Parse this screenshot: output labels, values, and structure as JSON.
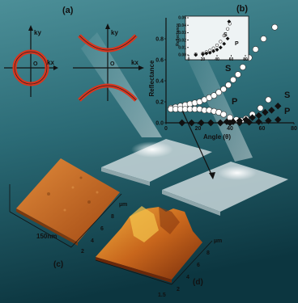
{
  "figure": {
    "panel_labels": {
      "a": "(a)",
      "b": "(b)",
      "c": "(c)",
      "d": "(d)"
    },
    "dispersion": {
      "axis_kx": "kx",
      "axis_ky": "ky",
      "origin_label": "O"
    },
    "afm": {
      "c": {
        "height_label": "150nm",
        "unit": "µm",
        "ticks_x": [
          "2",
          "4",
          "6",
          "8"
        ],
        "ticks_y": [
          "2",
          "4",
          "6",
          "8"
        ]
      },
      "d": {
        "unit": "µm",
        "ticks_x": [
          "1.5",
          "2",
          "4",
          "6",
          "8"
        ],
        "ticks_y": [
          "2",
          "4",
          "6",
          "8"
        ]
      }
    },
    "colors": {
      "background_top": "#3a7e88",
      "background_bottom": "#0f3a44",
      "ring": "#e0402a",
      "afm_surface": "#c8641e"
    }
  },
  "chart_data": [
    {
      "type": "scatter",
      "title": "",
      "xlabel": "Angle (θ)",
      "ylabel": "Reflectance",
      "xlim": [
        0,
        80
      ],
      "ylim": [
        0,
        1
      ],
      "xticks": [
        0,
        20,
        40,
        60,
        80
      ],
      "yticks": [
        0.0,
        0.2,
        0.4,
        0.6,
        0.8
      ],
      "series": [
        {
          "name": "S",
          "marker": "open-circle",
          "points": [
            [
              3,
              0.14
            ],
            [
              6,
              0.15
            ],
            [
              9,
              0.16
            ],
            [
              12,
              0.17
            ],
            [
              15,
              0.18
            ],
            [
              18,
              0.19
            ],
            [
              21,
              0.2
            ],
            [
              24,
              0.22
            ],
            [
              27,
              0.24
            ],
            [
              30,
              0.26
            ],
            [
              33,
              0.29
            ],
            [
              36,
              0.32
            ],
            [
              39,
              0.36
            ],
            [
              42,
              0.41
            ],
            [
              45,
              0.46
            ],
            [
              48,
              0.53
            ],
            [
              52,
              0.62
            ],
            [
              56,
              0.7
            ],
            [
              61,
              0.8
            ],
            [
              68,
              0.91
            ]
          ]
        },
        {
          "name": "P",
          "marker": "open-circle",
          "points": [
            [
              3,
              0.13
            ],
            [
              6,
              0.13
            ],
            [
              9,
              0.13
            ],
            [
              12,
              0.13
            ],
            [
              15,
              0.13
            ],
            [
              18,
              0.13
            ],
            [
              21,
              0.13
            ],
            [
              24,
              0.12
            ],
            [
              27,
              0.12
            ],
            [
              30,
              0.11
            ],
            [
              33,
              0.1
            ],
            [
              36,
              0.08
            ],
            [
              40,
              0.05
            ],
            [
              44,
              0.03
            ],
            [
              47,
              0.02
            ],
            [
              50,
              0.04
            ],
            [
              54,
              0.08
            ],
            [
              59,
              0.14
            ],
            [
              64,
              0.22
            ]
          ]
        },
        {
          "name": "S",
          "marker": "filled-diamond",
          "points": [
            [
              10,
              0.0
            ],
            [
              16,
              0.0
            ],
            [
              22,
              0.0
            ],
            [
              28,
              0.0
            ],
            [
              34,
              0.0
            ],
            [
              38,
              0.01
            ],
            [
              42,
              0.01
            ],
            [
              46,
              0.02
            ],
            [
              50,
              0.03
            ],
            [
              54,
              0.05
            ],
            [
              58,
              0.07
            ],
            [
              62,
              0.1
            ],
            [
              66,
              0.12
            ],
            [
              70,
              0.16
            ]
          ]
        },
        {
          "name": "P",
          "marker": "filled-diamond",
          "points": [
            [
              10,
              0.0
            ],
            [
              16,
              0.0
            ],
            [
              22,
              0.0
            ],
            [
              28,
              0.0
            ],
            [
              34,
              0.0
            ],
            [
              40,
              0.0
            ],
            [
              46,
              0.0
            ],
            [
              52,
              0.005
            ],
            [
              58,
              0.01
            ],
            [
              64,
              0.02
            ],
            [
              70,
              0.03
            ]
          ]
        }
      ],
      "series_labels": [
        "S",
        "P",
        "S",
        "P"
      ]
    },
    {
      "type": "scatter",
      "title": "",
      "xlabel": "",
      "ylabel": "Reflectance",
      "xlim": [
        0,
        80
      ],
      "ylim": [
        0,
        0.05
      ],
      "xticks": [
        0,
        20,
        40,
        60,
        80
      ],
      "yticks": [
        0.0,
        0.01,
        0.02,
        0.03,
        0.04,
        0.05
      ],
      "series": [
        {
          "name": "S",
          "marker": "open-circle",
          "points": [
            [
              10,
              0.001
            ],
            [
              20,
              0.002
            ],
            [
              25,
              0.004
            ],
            [
              30,
              0.006
            ],
            [
              35,
              0.009
            ],
            [
              40,
              0.013
            ],
            [
              45,
              0.018
            ],
            [
              50,
              0.026
            ],
            [
              55,
              0.035
            ],
            [
              58,
              0.042
            ]
          ]
        },
        {
          "name": "P",
          "marker": "filled-diamond",
          "points": [
            [
              10,
              0.0
            ],
            [
              20,
              0.001
            ],
            [
              25,
              0.002
            ],
            [
              30,
              0.003
            ],
            [
              35,
              0.005
            ],
            [
              40,
              0.007
            ],
            [
              45,
              0.01
            ],
            [
              50,
              0.015
            ],
            [
              55,
              0.022
            ],
            [
              57,
              0.045
            ]
          ]
        }
      ],
      "series_labels": [
        "S",
        "P"
      ]
    }
  ]
}
